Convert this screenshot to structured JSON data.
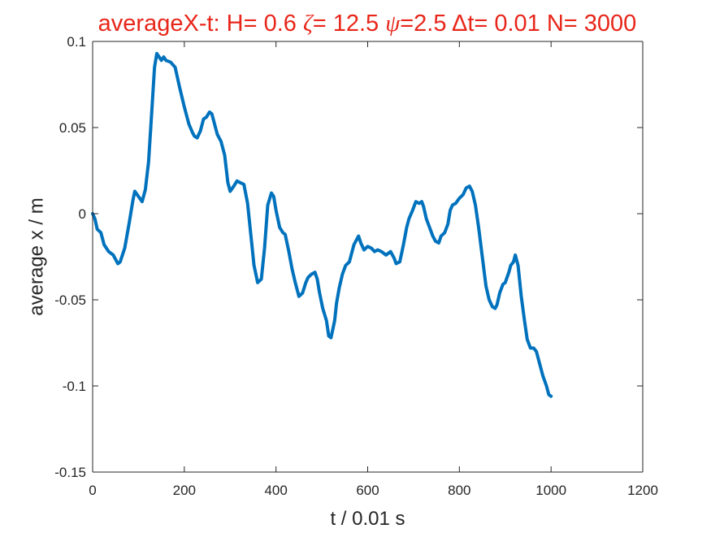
{
  "chart_data": {
    "type": "line",
    "title": {
      "prefix": "averageX-t:  H= 0.6 ",
      "zeta_symbol": "ζ",
      "zeta_value": "= 12.5 ",
      "psi_symbol": "ψ",
      "psi_value": "=2.5 ",
      "delta_symbol": "Δ",
      "suffix": "t= 0.01 N= 3000"
    },
    "xlabel": "t / 0.01 s",
    "ylabel": "average x / m",
    "xlim": [
      0,
      1200
    ],
    "ylim": [
      -0.15,
      0.1
    ],
    "xticks": [
      0,
      200,
      400,
      600,
      800,
      1000,
      1200
    ],
    "xtick_labels": [
      "0",
      "200",
      "400",
      "600",
      "800",
      "1000",
      "1200"
    ],
    "yticks": [
      -0.15,
      -0.1,
      -0.05,
      0,
      0.05,
      0.1
    ],
    "ytick_labels": [
      "-0.15",
      "-0.1",
      "-0.05",
      "0",
      "0.05",
      "0.1"
    ],
    "grid": false,
    "series": [
      {
        "color": "#0072bd",
        "x": [
          0,
          5,
          10,
          18,
          25,
          35,
          45,
          55,
          60,
          70,
          80,
          88,
          92,
          100,
          108,
          115,
          122,
          128,
          135,
          140,
          145,
          150,
          155,
          160,
          170,
          180,
          190,
          200,
          210,
          218,
          222,
          228,
          235,
          242,
          248,
          255,
          260,
          265,
          272,
          280,
          288,
          295,
          300,
          308,
          315,
          322,
          330,
          338,
          345,
          352,
          360,
          368,
          375,
          382,
          390,
          395,
          400,
          408,
          415,
          420,
          428,
          435,
          442,
          450,
          458,
          465,
          470,
          478,
          485,
          490,
          495,
          502,
          510,
          515,
          520,
          528,
          532,
          538,
          545,
          552,
          560,
          570,
          580,
          585,
          592,
          600,
          608,
          615,
          622,
          630,
          640,
          650,
          658,
          662,
          670,
          678,
          685,
          690,
          698,
          705,
          712,
          718,
          722,
          728,
          735,
          742,
          748,
          755,
          760,
          768,
          775,
          780,
          785,
          792,
          800,
          808,
          815,
          822,
          828,
          835,
          842,
          850,
          858,
          865,
          872,
          878,
          882,
          888,
          895,
          900,
          908,
          912,
          918,
          922,
          928,
          935,
          942,
          948,
          955,
          962,
          968,
          975,
          982,
          990,
          995,
          1000
        ],
        "y": [
          0.0,
          -0.003,
          -0.009,
          -0.011,
          -0.018,
          -0.022,
          -0.024,
          -0.029,
          -0.028,
          -0.02,
          -0.005,
          0.008,
          0.013,
          0.01,
          0.007,
          0.014,
          0.03,
          0.055,
          0.085,
          0.093,
          0.091,
          0.089,
          0.091,
          0.089,
          0.088,
          0.085,
          0.073,
          0.062,
          0.052,
          0.047,
          0.045,
          0.044,
          0.048,
          0.055,
          0.056,
          0.059,
          0.058,
          0.053,
          0.046,
          0.042,
          0.034,
          0.018,
          0.013,
          0.016,
          0.019,
          0.018,
          0.017,
          0.006,
          -0.012,
          -0.03,
          -0.04,
          -0.038,
          -0.02,
          0.005,
          0.012,
          0.01,
          0.002,
          -0.008,
          -0.011,
          -0.012,
          -0.022,
          -0.032,
          -0.04,
          -0.048,
          -0.046,
          -0.04,
          -0.037,
          -0.035,
          -0.034,
          -0.038,
          -0.046,
          -0.055,
          -0.062,
          -0.071,
          -0.072,
          -0.062,
          -0.052,
          -0.043,
          -0.035,
          -0.03,
          -0.028,
          -0.018,
          -0.013,
          -0.017,
          -0.021,
          -0.019,
          -0.02,
          -0.022,
          -0.021,
          -0.022,
          -0.024,
          -0.022,
          -0.026,
          -0.029,
          -0.028,
          -0.018,
          -0.008,
          -0.003,
          0.002,
          0.007,
          0.006,
          0.007,
          0.004,
          -0.003,
          -0.008,
          -0.013,
          -0.016,
          -0.017,
          -0.013,
          -0.011,
          -0.006,
          0.002,
          0.005,
          0.006,
          0.009,
          0.011,
          0.015,
          0.016,
          0.013,
          0.005,
          -0.008,
          -0.025,
          -0.042,
          -0.05,
          -0.054,
          -0.055,
          -0.053,
          -0.046,
          -0.041,
          -0.04,
          -0.034,
          -0.03,
          -0.028,
          -0.024,
          -0.03,
          -0.048,
          -0.062,
          -0.073,
          -0.078,
          -0.078,
          -0.08,
          -0.087,
          -0.094,
          -0.1,
          -0.105,
          -0.106
        ]
      }
    ]
  }
}
